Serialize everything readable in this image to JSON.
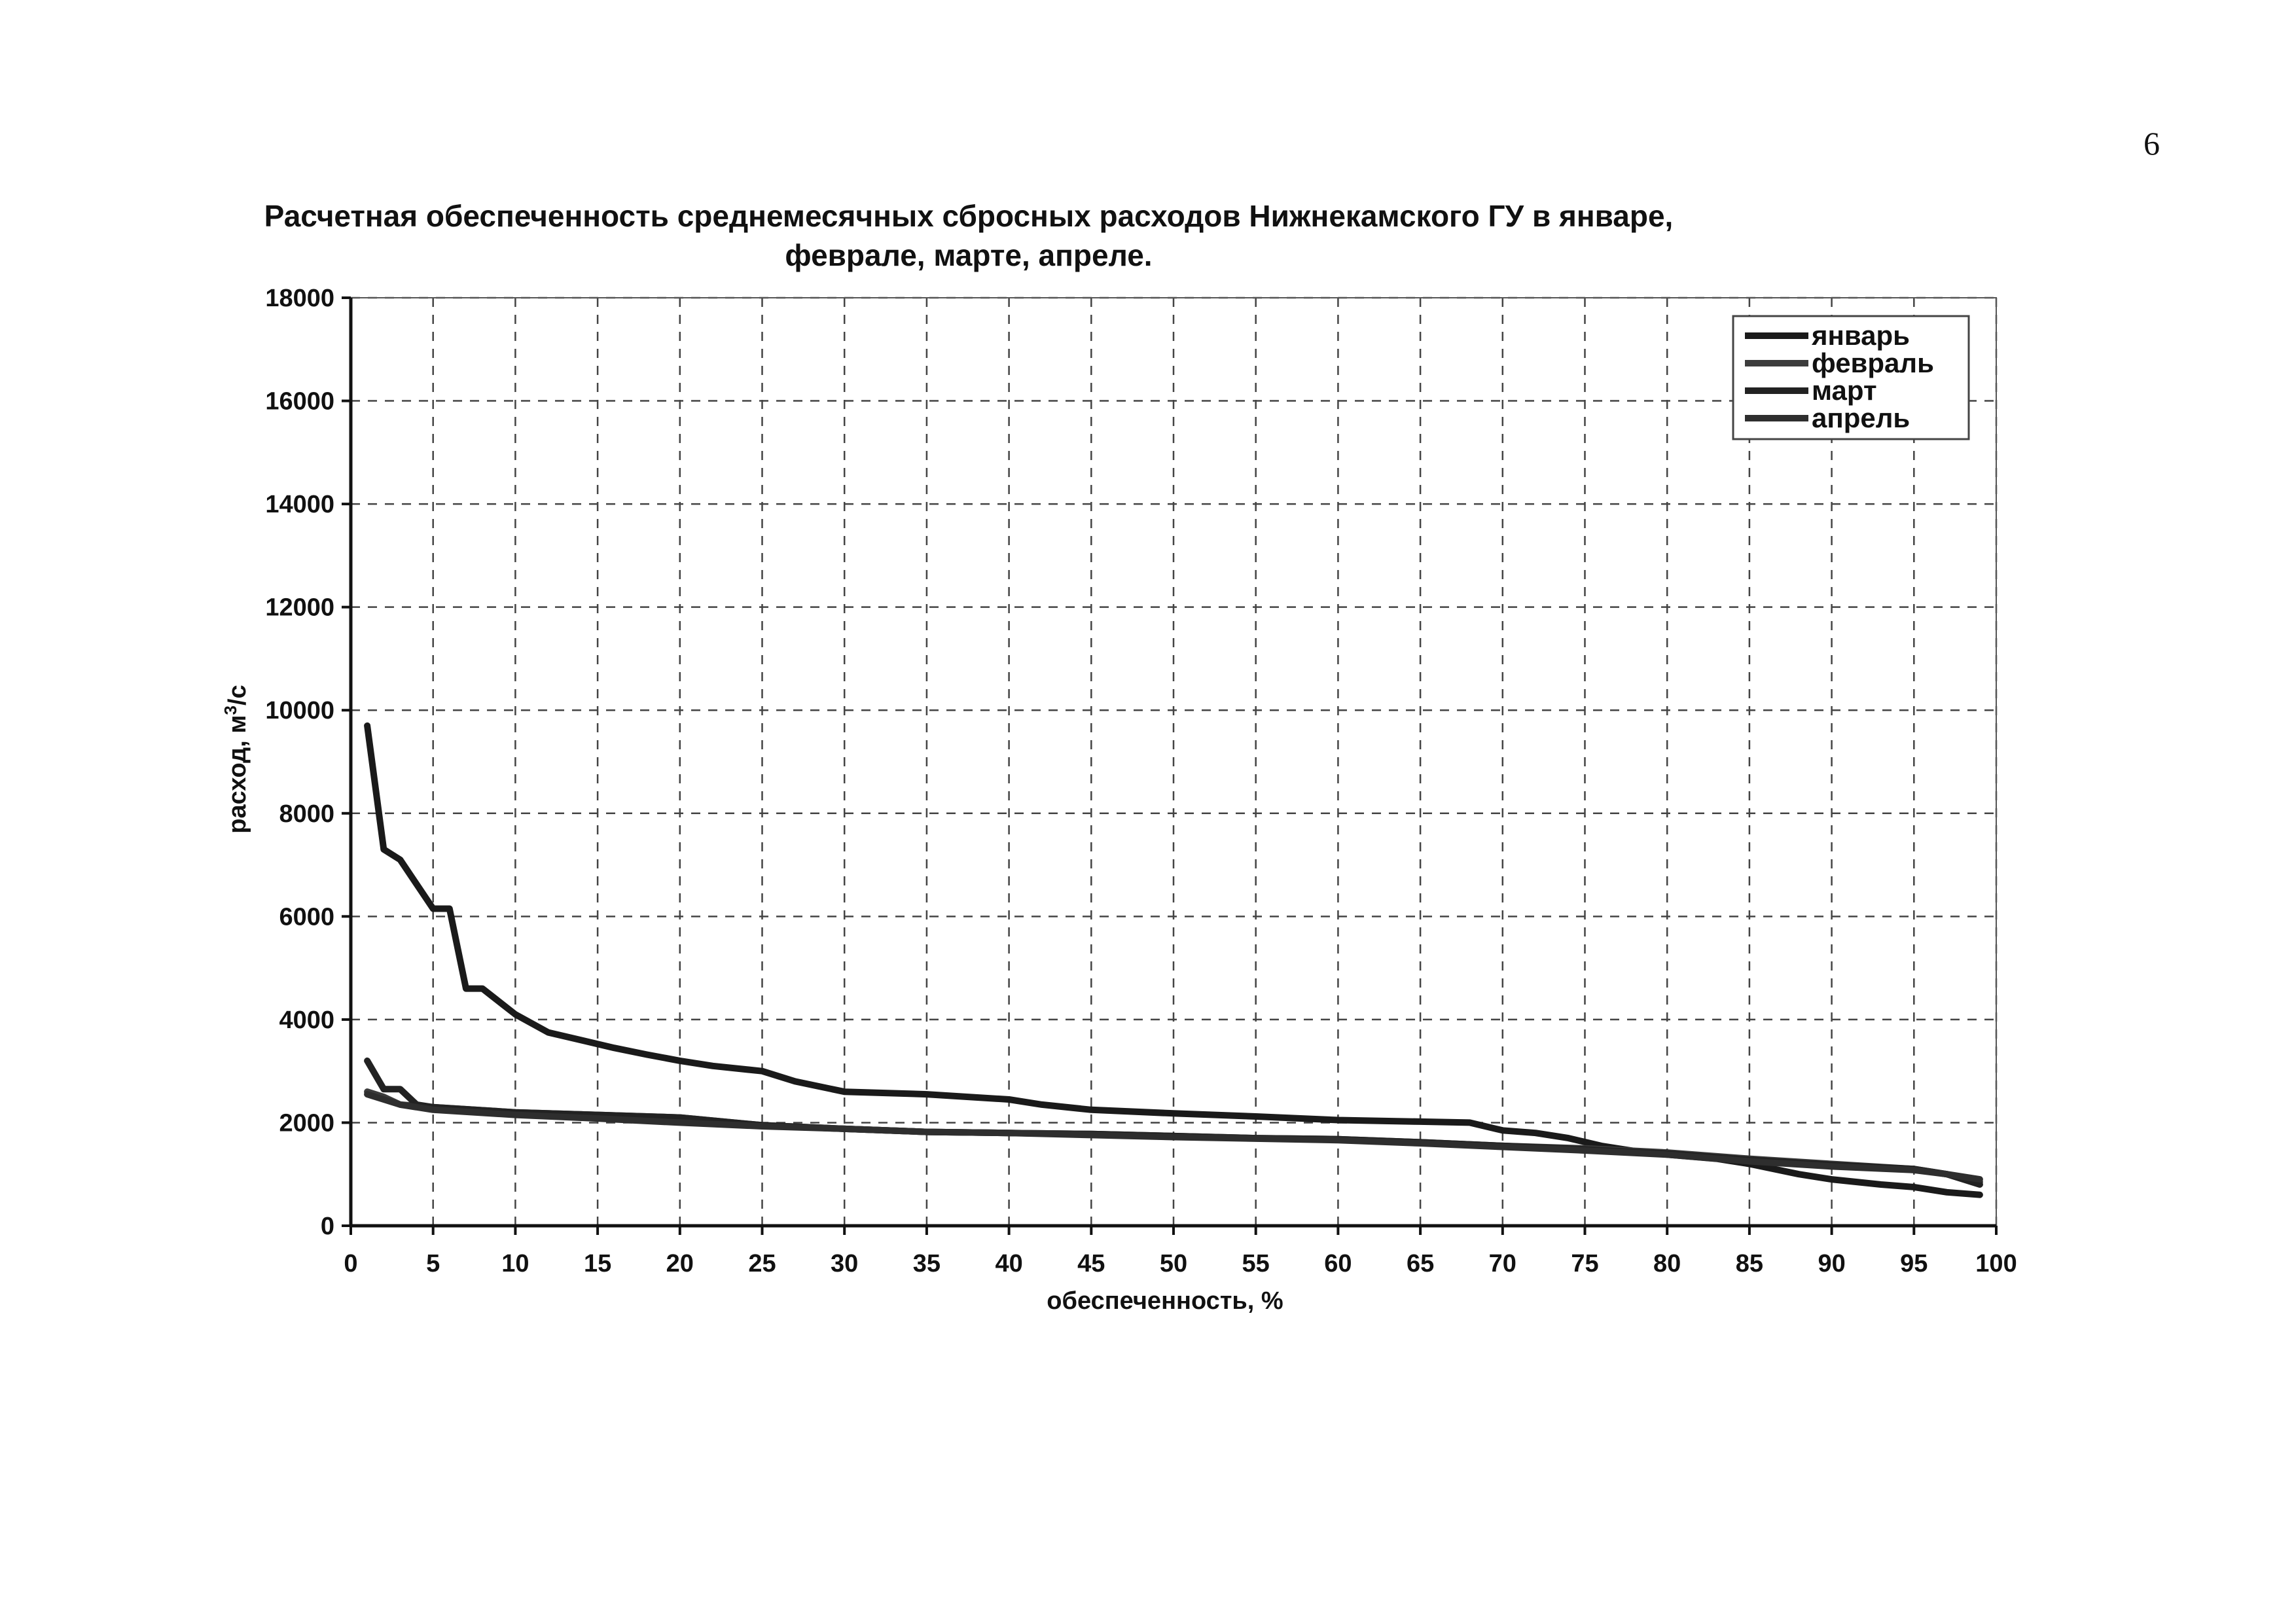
{
  "page": {
    "number": "6"
  },
  "chart_data": {
    "type": "line",
    "title_lines": [
      "Расчетная обеспеченность среднемесячных сбросных расходов Нижнекамского ГУ в январе,",
      "феврале, марте, апреле."
    ],
    "xlabel": "обеспеченность, %",
    "ylabel_main": "расход, м",
    "ylabel_sup": "3",
    "ylabel_tail": "/с",
    "xlim": [
      0,
      100
    ],
    "ylim": [
      0,
      18000
    ],
    "xticks": [
      0,
      5,
      10,
      15,
      20,
      25,
      30,
      35,
      40,
      45,
      50,
      55,
      60,
      65,
      70,
      75,
      80,
      85,
      90,
      95,
      100
    ],
    "yticks": [
      0,
      2000,
      4000,
      6000,
      8000,
      10000,
      12000,
      14000,
      16000,
      18000
    ],
    "grid": true,
    "legend_position": "top-right",
    "series": [
      {
        "name": "январь",
        "color": "#1a1a1a",
        "x": [
          1,
          2,
          3,
          5,
          6,
          7,
          8,
          10,
          12,
          14,
          16,
          18,
          20,
          22,
          25,
          27,
          30,
          35,
          40,
          42,
          45,
          50,
          55,
          60,
          65,
          68,
          70,
          72,
          74,
          76,
          78,
          80,
          83,
          85,
          88,
          90,
          93,
          95,
          97,
          99
        ],
        "y": [
          9700,
          7300,
          7100,
          6150,
          6150,
          4600,
          4600,
          4100,
          3750,
          3600,
          3450,
          3320,
          3200,
          3100,
          3000,
          2800,
          2600,
          2550,
          2450,
          2350,
          2250,
          2180,
          2120,
          2050,
          2020,
          2000,
          1850,
          1800,
          1700,
          1550,
          1450,
          1380,
          1300,
          1200,
          1000,
          900,
          800,
          750,
          650,
          600
        ]
      },
      {
        "name": "февраль",
        "color": "#3c3c3c",
        "x": [
          1,
          2,
          3,
          5,
          10,
          15,
          20,
          25,
          30,
          35,
          40,
          45,
          50,
          55,
          60,
          65,
          70,
          75,
          80,
          85,
          90,
          95,
          97,
          99
        ],
        "y": [
          2600,
          2500,
          2350,
          2300,
          2200,
          2150,
          2100,
          1950,
          1880,
          1820,
          1800,
          1780,
          1740,
          1700,
          1680,
          1620,
          1550,
          1500,
          1420,
          1300,
          1200,
          1100,
          1000,
          850
        ]
      },
      {
        "name": "март",
        "color": "#222222",
        "x": [
          1,
          2,
          3,
          4,
          5,
          10,
          15,
          20,
          25,
          30,
          35,
          40,
          45,
          50,
          55,
          60,
          65,
          70,
          75,
          80,
          85,
          90,
          95,
          97,
          99
        ],
        "y": [
          3200,
          2650,
          2650,
          2350,
          2300,
          2200,
          2150,
          2100,
          1950,
          1880,
          1820,
          1800,
          1780,
          1740,
          1700,
          1680,
          1620,
          1550,
          1480,
          1400,
          1280,
          1180,
          1100,
          1000,
          800
        ]
      },
      {
        "name": "апрель",
        "color": "#2e2e2e",
        "x": [
          1,
          3,
          5,
          10,
          15,
          20,
          25,
          30,
          35,
          40,
          45,
          50,
          55,
          60,
          65,
          70,
          75,
          80,
          85,
          90,
          95,
          97,
          99
        ],
        "y": [
          2550,
          2350,
          2250,
          2150,
          2080,
          2000,
          1930,
          1880,
          1820,
          1800,
          1760,
          1720,
          1690,
          1660,
          1600,
          1530,
          1460,
          1380,
          1250,
          1150,
          1080,
          1000,
          900
        ]
      }
    ]
  }
}
